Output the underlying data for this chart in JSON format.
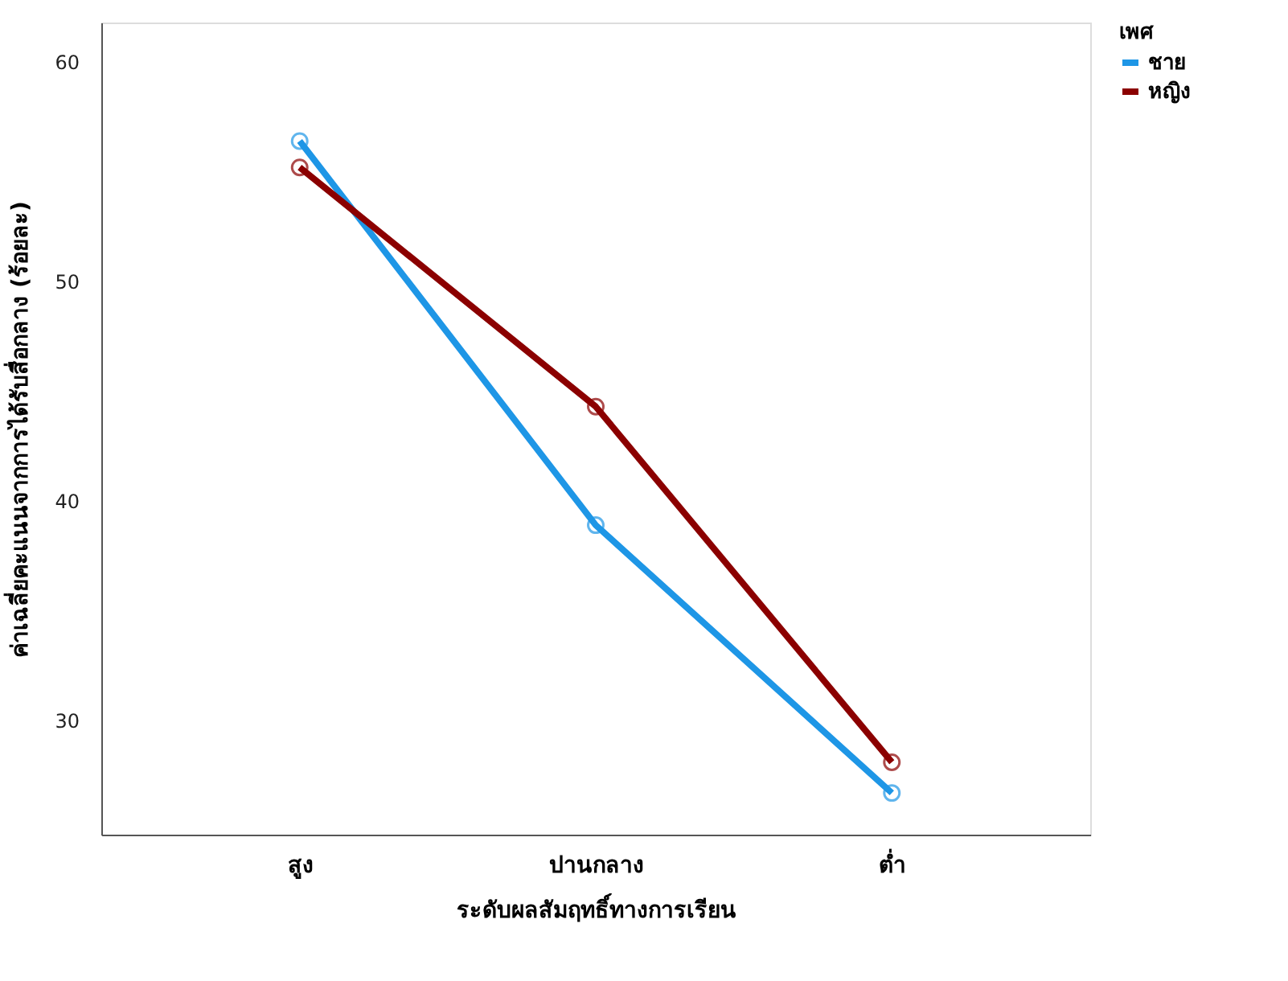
{
  "chart_data": {
    "type": "line",
    "xlabel": "ระดับผลสัมฤทธิ์ทางการเรียน",
    "ylabel": "ค่าเฉลี่ยคะแนนจากการได้รับสื่อกลาง (ร้อยละ)",
    "legend_title": "เพศ",
    "categories": [
      "สูง",
      "ปานกลาง",
      "ต่ำ"
    ],
    "series": [
      {
        "name": "ชาย",
        "color": "#1e96e6",
        "values": [
          56.4,
          38.9,
          26.7
        ]
      },
      {
        "name": "หญิง",
        "color": "#8b0000",
        "values": [
          55.2,
          44.3,
          28.1
        ]
      }
    ],
    "ylim": [
      24.8,
      61.8
    ],
    "yticks": [
      30,
      40,
      50,
      60
    ],
    "grid": false,
    "legend": "top right",
    "marker": "circle",
    "line_style": "solid"
  }
}
